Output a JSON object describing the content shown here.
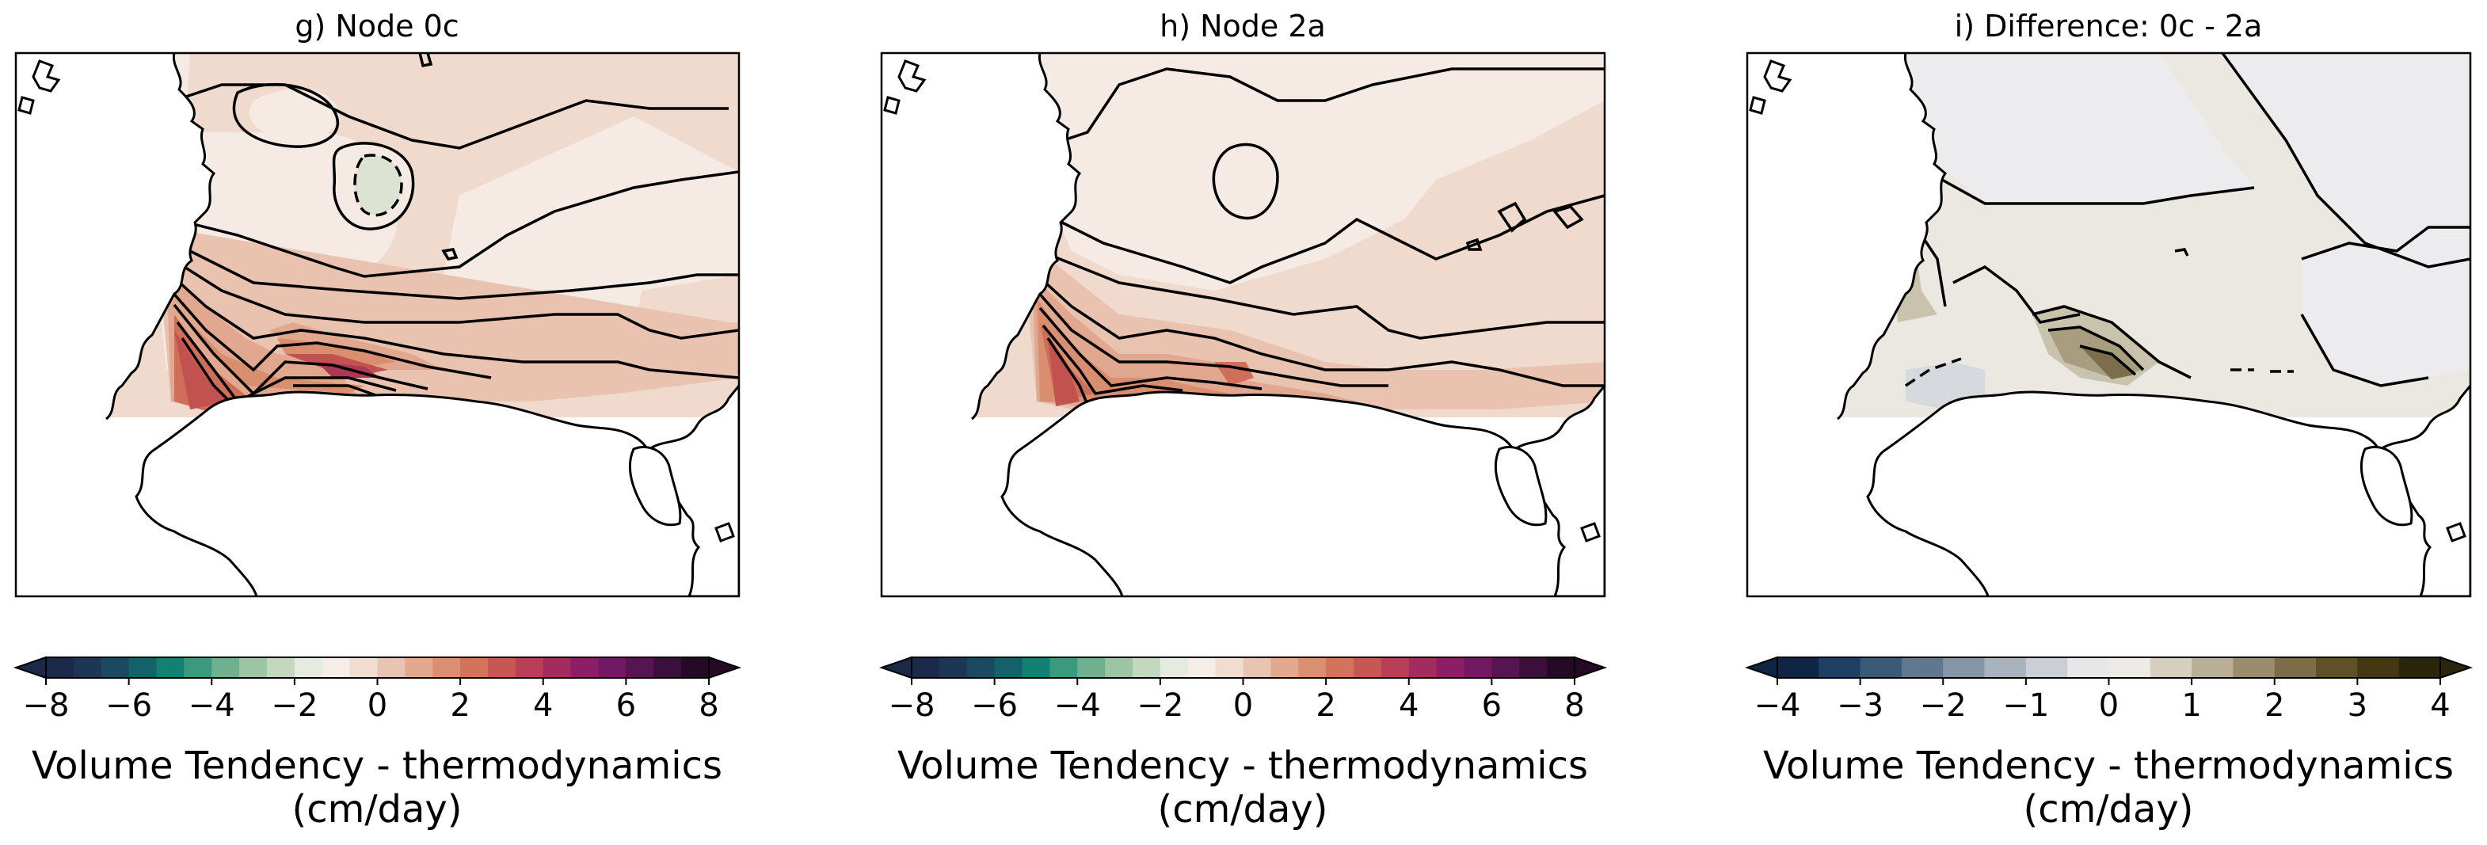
{
  "chart_data": [
    {
      "type": "heatmap",
      "title": "g) Node 0c",
      "colorbar": {
        "label_line1": "Volume Tendency - thermodynamics",
        "label_line2": "(cm/day)",
        "min": -8,
        "max": 8,
        "extend": "both",
        "ticks": [
          "−8",
          "−6",
          "−4",
          "−2",
          "0",
          "2",
          "4",
          "6",
          "8"
        ],
        "colors": [
          "#1b2848",
          "#1c3754",
          "#1b4a60",
          "#14616a",
          "#138074",
          "#3b9a7e",
          "#6fb08e",
          "#9dc5a4",
          "#c3d8bf",
          "#e5ebdf",
          "#f6ede6",
          "#f2dcd0",
          "#eac4b2",
          "#e3a990",
          "#db8f71",
          "#d2735b",
          "#c75752",
          "#b83f57",
          "#a32c5f",
          "#8b1f67",
          "#711a63",
          "#551550",
          "#3b0f3b",
          "#240a24"
        ]
      },
      "field_shades": [
        "#f6ebe4",
        "#f0d9cd",
        "#e9c2b0",
        "#e2a88f",
        "#da8e70",
        "#cf6f59",
        "#c2524f",
        "#ad3757",
        "#dce3d3"
      ]
    },
    {
      "type": "heatmap",
      "title": "h) Node 2a",
      "colorbar": {
        "label_line1": "Volume Tendency - thermodynamics",
        "label_line2": "(cm/day)",
        "min": -8,
        "max": 8,
        "extend": "both",
        "ticks": [
          "−8",
          "−6",
          "−4",
          "−2",
          "0",
          "2",
          "4",
          "6",
          "8"
        ],
        "colors": [
          "#1b2848",
          "#1c3754",
          "#1b4a60",
          "#14616a",
          "#138074",
          "#3b9a7e",
          "#6fb08e",
          "#9dc5a4",
          "#c3d8bf",
          "#e5ebdf",
          "#f6ede6",
          "#f2dcd0",
          "#eac4b2",
          "#e3a990",
          "#db8f71",
          "#d2735b",
          "#c75752",
          "#b83f57",
          "#a32c5f",
          "#8b1f67",
          "#711a63",
          "#551550",
          "#3b0f3b",
          "#240a24"
        ]
      },
      "field_shades": [
        "#f6ebe4",
        "#f0d9cd",
        "#e9c2b0",
        "#e2a88f",
        "#da8e70",
        "#cf6f59",
        "#c2524f",
        "#ad3757"
      ]
    },
    {
      "type": "heatmap",
      "title": "i) Difference: 0c - 2a",
      "colorbar": {
        "label_line1": "Volume Tendency - thermodynamics",
        "label_line2": "(cm/day)",
        "min": -4,
        "max": 4,
        "extend": "both",
        "ticks": [
          "−4",
          "−3",
          "−2",
          "−1",
          "0",
          "1",
          "2",
          "3",
          "4"
        ],
        "colors": [
          "#0e2545",
          "#1f3f63",
          "#3b5a78",
          "#5f7890",
          "#8596a8",
          "#a8b3be",
          "#c9cfd4",
          "#e6e7e9",
          "#eeebe6",
          "#d6cfc0",
          "#b9ae96",
          "#9a8c6c",
          "#7c6c47",
          "#5f5028",
          "#433812",
          "#2b260b"
        ]
      },
      "field_shades": [
        "#ececee",
        "#ebe8e2",
        "#c9c3ae",
        "#a89d7e",
        "#7c6e4c",
        "#d6d9de"
      ]
    }
  ]
}
